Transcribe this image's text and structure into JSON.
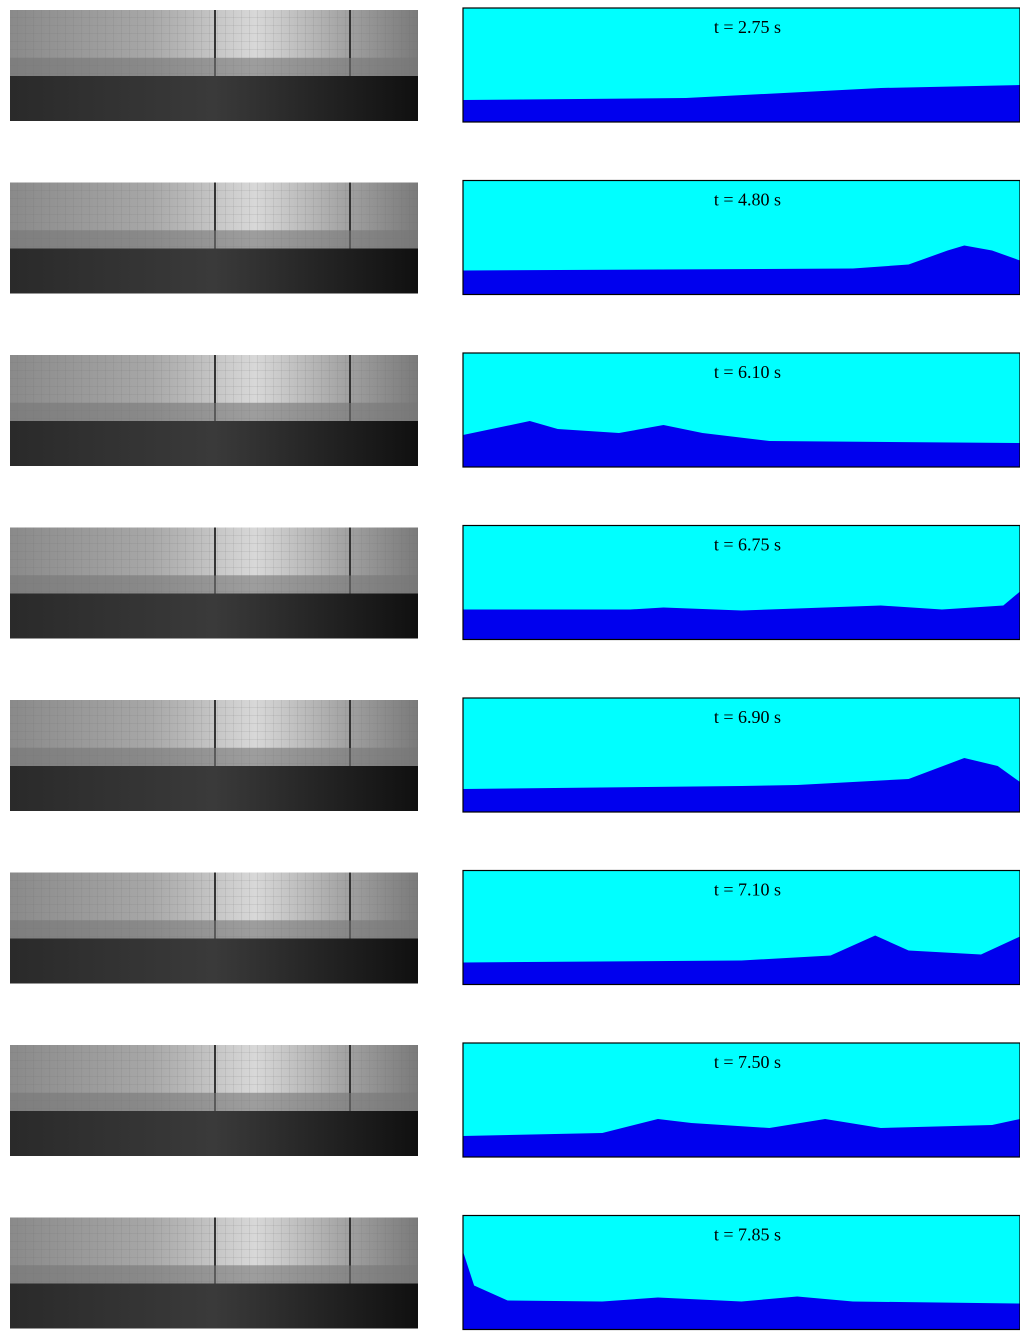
{
  "panels": [
    {
      "label": "t = 2.75 s"
    },
    {
      "label": "t = 4.80 s"
    },
    {
      "label": "t = 6.10 s"
    },
    {
      "label": "t = 6.75 s"
    },
    {
      "label": "t = 6.90 s"
    },
    {
      "label": "t = 7.10 s"
    },
    {
      "label": "t = 7.50 s"
    },
    {
      "label": "t = 7.85 s"
    }
  ]
}
